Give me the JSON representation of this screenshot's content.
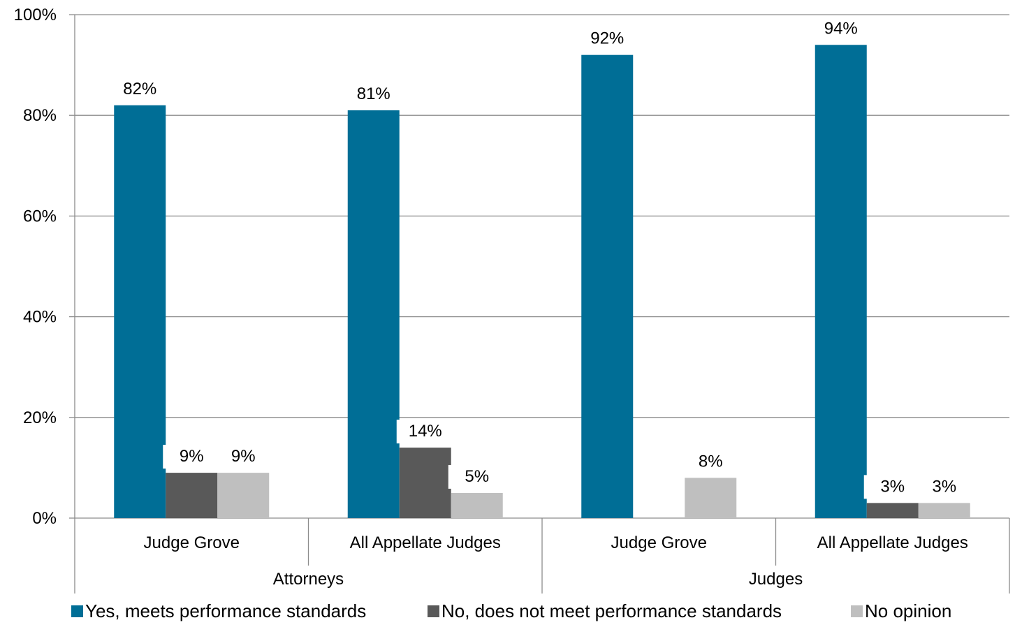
{
  "chart_data": {
    "type": "bar",
    "title": "",
    "xlabel": "",
    "ylabel": "",
    "ylim": [
      0,
      100
    ],
    "y_ticks": [
      "0%",
      "20%",
      "40%",
      "60%",
      "80%",
      "100%"
    ],
    "y_tick_values": [
      0,
      20,
      40,
      60,
      80,
      100
    ],
    "grid": true,
    "legend_position": "bottom",
    "groups": [
      {
        "name": "Attorneys",
        "categories": [
          "Judge Grove",
          "All Appellate Judges"
        ]
      },
      {
        "name": "Judges",
        "categories": [
          "Judge Grove",
          "All Appellate Judges"
        ]
      }
    ],
    "categories": [
      "Judge Grove",
      "All Appellate Judges",
      "Judge Grove",
      "All Appellate Judges"
    ],
    "series": [
      {
        "name": "Yes, meets performance standards",
        "color": "#006e96",
        "values": [
          82,
          81,
          92,
          94
        ],
        "labels": [
          "82%",
          "81%",
          "92%",
          "94%"
        ]
      },
      {
        "name": "No, does not meet performance standards",
        "color": "#595959",
        "values": [
          9,
          14,
          0,
          3
        ],
        "labels": [
          "9%",
          "14%",
          "",
          "3%"
        ]
      },
      {
        "name": "No opinion",
        "color": "#bfbfbf",
        "values": [
          9,
          5,
          8,
          3
        ],
        "labels": [
          "9%",
          "5%",
          "8%",
          "3%"
        ]
      }
    ]
  }
}
